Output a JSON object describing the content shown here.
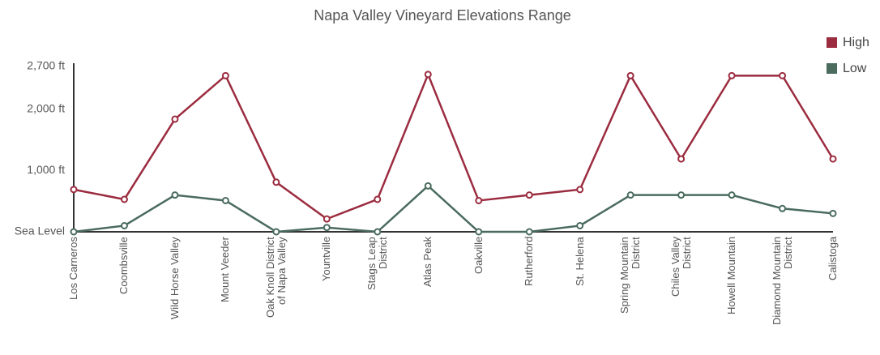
{
  "chart_data": {
    "type": "line",
    "title": "Napa Valley Vineyard Elevations Range",
    "categories": [
      "Los Carneros",
      "Coombsville",
      "Wild Horse Valley",
      "Mount Veeder",
      "Oak Knoll District\nof Napa Valley",
      "Yountville",
      "Stags Leap\nDistrict",
      "Atlas Peak",
      "Oakville",
      "Rutherford",
      "St. Helena",
      "Spring Mountain\nDistrict",
      "Chiles Valley\nDistrict",
      "Howell Mountain",
      "Diamond Mountain\nDistrict",
      "Calistoga"
    ],
    "series": [
      {
        "name": "High",
        "color": "#9b2c3f",
        "values": [
          690,
          530,
          1840,
          2550,
          810,
          210,
          530,
          2570,
          510,
          600,
          690,
          2550,
          1190,
          2550,
          2550,
          1190
        ]
      },
      {
        "name": "Low",
        "color": "#4a6b5e",
        "values": [
          0,
          100,
          600,
          510,
          0,
          70,
          0,
          750,
          0,
          0,
          100,
          600,
          600,
          600,
          380,
          300
        ]
      }
    ],
    "ylim": [
      0,
      2700
    ],
    "yticks": [
      {
        "value": 0,
        "label": "Sea Level"
      },
      {
        "value": 1000,
        "label": "1,000 ft"
      },
      {
        "value": 2000,
        "label": "2,000 ft"
      },
      {
        "value": 2700,
        "label": "2,700 ft"
      }
    ],
    "legend": "top-right"
  }
}
